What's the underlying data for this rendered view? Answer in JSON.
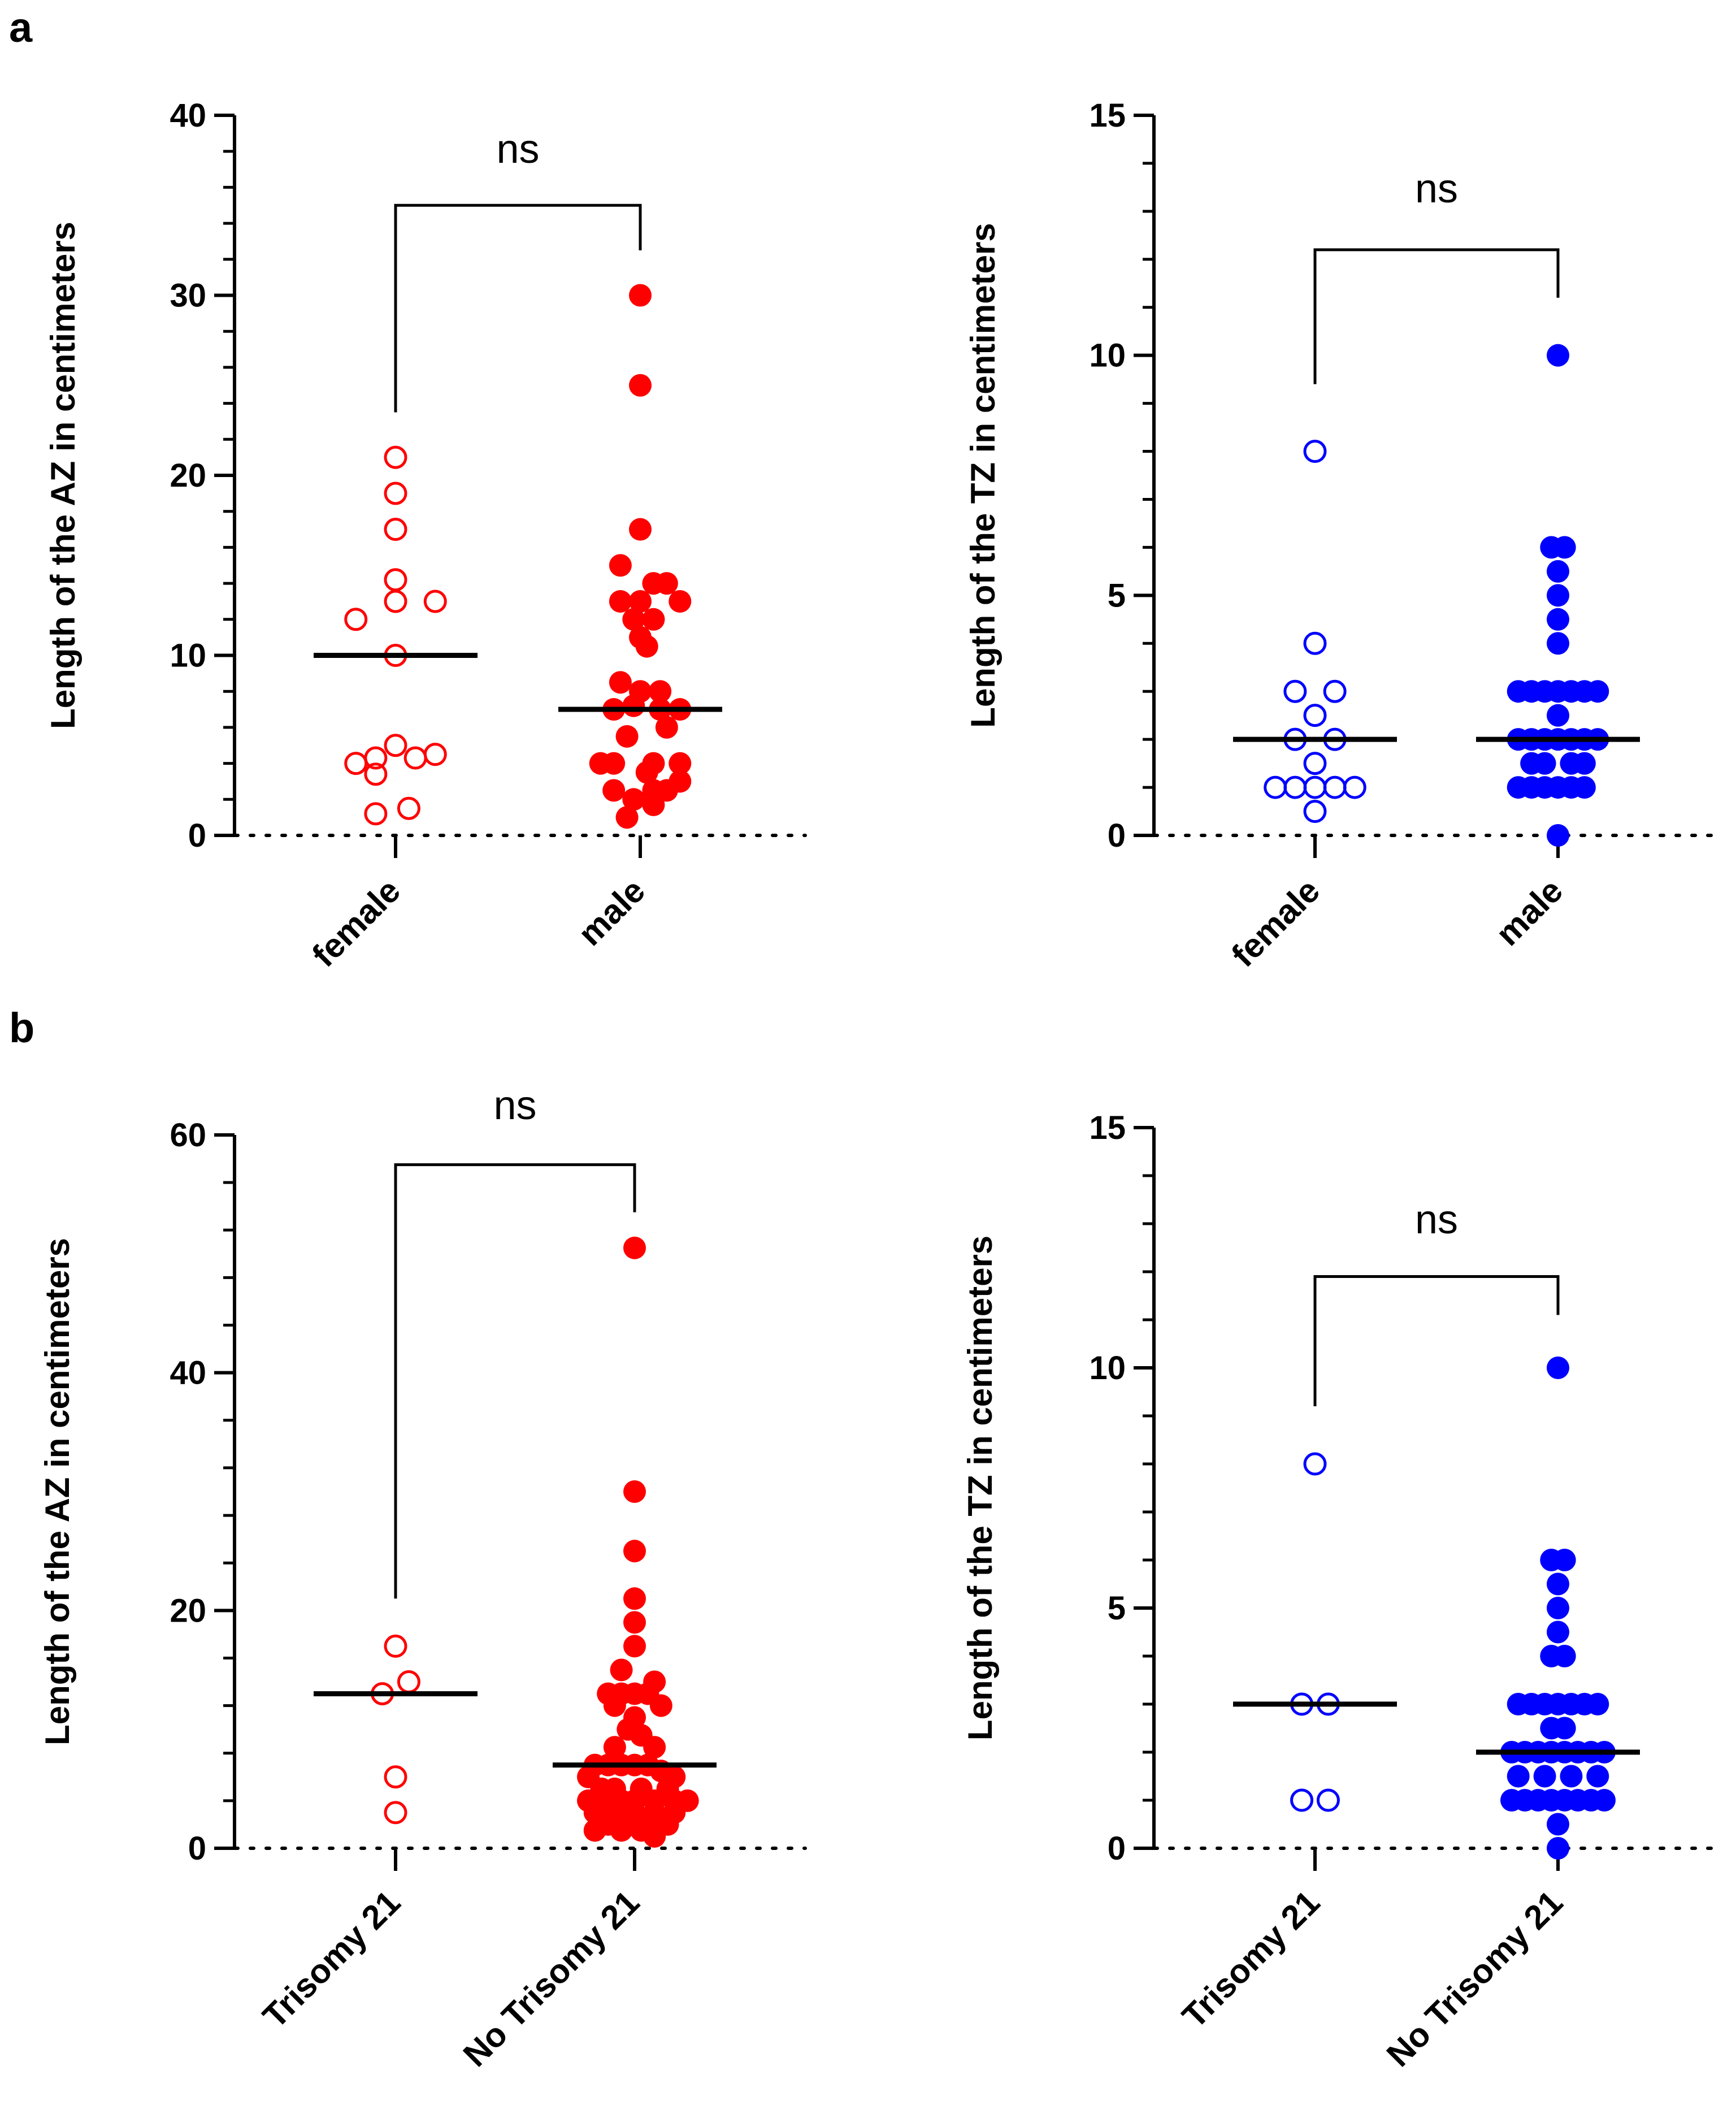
{
  "panel_labels": [
    "a",
    "b"
  ],
  "chart_data": [
    {
      "type": "scatter",
      "panel": "a",
      "ylabel": "Length of the AZ in centimeters",
      "ylim": [
        0,
        40
      ],
      "yticks": [
        0,
        10,
        20,
        30,
        40
      ],
      "minor_ticks_per_major": 4,
      "categories": [
        "female",
        "male"
      ],
      "category_label_rotation": -45,
      "series": [
        {
          "name": "female",
          "marker": "open-circle",
          "color": "#ff0000",
          "median": 10,
          "points": [
            [
              0,
              21
            ],
            [
              0,
              19
            ],
            [
              0,
              17
            ],
            [
              0,
              14.2
            ],
            [
              0,
              13
            ],
            [
              0.3,
              13
            ],
            [
              -0.3,
              12
            ],
            [
              0,
              10
            ],
            [
              0,
              5
            ],
            [
              -0.15,
              4.3
            ],
            [
              0.15,
              4.3
            ],
            [
              -0.3,
              4
            ],
            [
              0.3,
              4.5
            ],
            [
              -0.15,
              3.4
            ],
            [
              -0.15,
              1.2
            ],
            [
              0.1,
              1.5
            ]
          ]
        },
        {
          "name": "male",
          "marker": "filled-circle",
          "color": "#ff0000",
          "median": 7,
          "points": [
            [
              0,
              30
            ],
            [
              0,
              25
            ],
            [
              0,
              17
            ],
            [
              -0.15,
              15
            ],
            [
              0.1,
              14
            ],
            [
              0.2,
              14
            ],
            [
              -0.15,
              13
            ],
            [
              0,
              13
            ],
            [
              0.3,
              13
            ],
            [
              -0.05,
              12
            ],
            [
              0.1,
              12
            ],
            [
              0,
              11
            ],
            [
              0.05,
              10.5
            ],
            [
              -0.15,
              8.5
            ],
            [
              0,
              8
            ],
            [
              0.15,
              8
            ],
            [
              -0.05,
              7.2
            ],
            [
              -0.2,
              7
            ],
            [
              0.15,
              7
            ],
            [
              0.3,
              7
            ],
            [
              0.2,
              6
            ],
            [
              -0.1,
              5.5
            ],
            [
              -0.3,
              4
            ],
            [
              -0.2,
              4
            ],
            [
              0.1,
              4
            ],
            [
              0.3,
              4
            ],
            [
              0.05,
              3.5
            ],
            [
              0.3,
              3
            ],
            [
              -0.2,
              2.5
            ],
            [
              0.1,
              2.5
            ],
            [
              0.2,
              2.5
            ],
            [
              -0.05,
              2
            ],
            [
              0.1,
              1.7
            ],
            [
              -0.1,
              1
            ]
          ]
        }
      ],
      "significance": {
        "label": "ns",
        "bracket_y": 35,
        "left_drop_to": 23.5,
        "right_drop_to": 32.5
      }
    },
    {
      "type": "scatter",
      "panel": "a",
      "ylabel": "Length of the TZ in centimeters",
      "ylim": [
        0,
        15
      ],
      "yticks": [
        0,
        5,
        10,
        15
      ],
      "minor_ticks_per_major": 4,
      "categories": [
        "female",
        "male"
      ],
      "category_label_rotation": -45,
      "series": [
        {
          "name": "female",
          "marker": "open-circle",
          "color": "#0000ff",
          "median": 2,
          "points": [
            [
              0,
              8
            ],
            [
              0,
              4
            ],
            [
              -0.15,
              3
            ],
            [
              0.15,
              3
            ],
            [
              0,
              2.5
            ],
            [
              -0.15,
              2
            ],
            [
              0.15,
              2
            ],
            [
              0,
              1.5
            ],
            [
              -0.3,
              1
            ],
            [
              -0.15,
              1
            ],
            [
              0,
              1
            ],
            [
              0.15,
              1
            ],
            [
              0.3,
              1
            ],
            [
              0,
              0.5
            ]
          ]
        },
        {
          "name": "male",
          "marker": "filled-circle",
          "color": "#0000ff",
          "median": 2,
          "points": [
            [
              0,
              10
            ],
            [
              -0.05,
              6
            ],
            [
              0.05,
              6
            ],
            [
              0,
              5.5
            ],
            [
              0,
              5
            ],
            [
              0,
              4.5
            ],
            [
              0,
              4
            ],
            [
              -0.3,
              3
            ],
            [
              -0.2,
              3
            ],
            [
              -0.1,
              3
            ],
            [
              0,
              3
            ],
            [
              0.1,
              3
            ],
            [
              0.2,
              3
            ],
            [
              0.3,
              3
            ],
            [
              0,
              2.5
            ],
            [
              -0.3,
              2
            ],
            [
              -0.2,
              2
            ],
            [
              -0.1,
              2
            ],
            [
              0,
              2
            ],
            [
              0.1,
              2
            ],
            [
              0.2,
              2
            ],
            [
              0.3,
              2
            ],
            [
              -0.2,
              1.5
            ],
            [
              -0.1,
              1.5
            ],
            [
              0.1,
              1.5
            ],
            [
              0.2,
              1.5
            ],
            [
              -0.3,
              1
            ],
            [
              -0.2,
              1
            ],
            [
              -0.1,
              1
            ],
            [
              0,
              1
            ],
            [
              0.1,
              1
            ],
            [
              0.2,
              1
            ],
            [
              0,
              0
            ]
          ]
        }
      ],
      "significance": {
        "label": "ns",
        "bracket_y": 12.2,
        "left_drop_to": 9.4,
        "right_drop_to": 11.2
      }
    },
    {
      "type": "scatter",
      "panel": "b",
      "ylabel": "Length of the AZ in centimeters",
      "ylim": [
        0,
        60
      ],
      "yticks": [
        0,
        20,
        40,
        60
      ],
      "minor_ticks_per_major": 4,
      "categories": [
        "Trisomy 21",
        "No Trisomy 21"
      ],
      "category_label_rotation": -45,
      "series": [
        {
          "name": "Trisomy 21",
          "marker": "open-circle",
          "color": "#ff0000",
          "median": 13,
          "points": [
            [
              0,
              17
            ],
            [
              0.1,
              14
            ],
            [
              -0.1,
              13
            ],
            [
              0,
              6
            ],
            [
              0,
              3
            ]
          ]
        },
        {
          "name": "No Trisomy 21",
          "marker": "filled-circle",
          "color": "#ff0000",
          "median": 7,
          "points": [
            [
              0,
              50.5
            ],
            [
              0,
              30
            ],
            [
              0,
              25
            ],
            [
              0,
              21
            ],
            [
              0,
              19
            ],
            [
              0,
              17
            ],
            [
              -0.1,
              15
            ],
            [
              0.15,
              14
            ],
            [
              -0.2,
              13
            ],
            [
              -0.1,
              13
            ],
            [
              0,
              13
            ],
            [
              0.1,
              13
            ],
            [
              0.2,
              12
            ],
            [
              -0.15,
              12
            ],
            [
              0,
              11
            ],
            [
              -0.05,
              10
            ],
            [
              0.05,
              9.5
            ],
            [
              -0.15,
              8.5
            ],
            [
              0.15,
              8.5
            ],
            [
              -0.3,
              7
            ],
            [
              -0.2,
              7
            ],
            [
              -0.1,
              7
            ],
            [
              0,
              7
            ],
            [
              0.1,
              7
            ],
            [
              0.2,
              6.5
            ],
            [
              -0.35,
              6
            ],
            [
              0.3,
              6
            ],
            [
              -0.25,
              5
            ],
            [
              -0.15,
              5
            ],
            [
              0.05,
              5
            ],
            [
              0.25,
              5
            ],
            [
              -0.35,
              4
            ],
            [
              -0.25,
              4
            ],
            [
              -0.1,
              4
            ],
            [
              0,
              4
            ],
            [
              0.15,
              4
            ],
            [
              0.3,
              4
            ],
            [
              0.4,
              4
            ],
            [
              -0.3,
              3
            ],
            [
              -0.15,
              3
            ],
            [
              0,
              3
            ],
            [
              0.15,
              3
            ],
            [
              0.3,
              3
            ],
            [
              -0.2,
              2
            ],
            [
              -0.05,
              2
            ],
            [
              0.1,
              2
            ],
            [
              0.25,
              2
            ],
            [
              -0.3,
              1.5
            ],
            [
              -0.1,
              1.5
            ],
            [
              0.05,
              1.5
            ],
            [
              0.15,
              1
            ]
          ]
        }
      ],
      "significance": {
        "label": "ns",
        "bracket_y": 57.5,
        "left_drop_to": 21,
        "right_drop_to": 53.5
      }
    },
    {
      "type": "scatter",
      "panel": "b",
      "ylabel": "Length of the TZ in centimeters",
      "ylim": [
        0,
        15
      ],
      "yticks": [
        0,
        5,
        10,
        15
      ],
      "minor_ticks_per_major": 4,
      "categories": [
        "Trisomy 21",
        "No Trisomy 21"
      ],
      "category_label_rotation": -45,
      "series": [
        {
          "name": "Trisomy 21",
          "marker": "open-circle",
          "color": "#0000ff",
          "median": 3,
          "points": [
            [
              0,
              8
            ],
            [
              -0.1,
              3
            ],
            [
              0.1,
              3
            ],
            [
              -0.1,
              1
            ],
            [
              0.1,
              1
            ]
          ]
        },
        {
          "name": "No Trisomy 21",
          "marker": "filled-circle",
          "color": "#0000ff",
          "median": 2,
          "points": [
            [
              0,
              10
            ],
            [
              -0.05,
              6
            ],
            [
              0.05,
              6
            ],
            [
              0,
              5.5
            ],
            [
              0,
              5
            ],
            [
              0,
              4.5
            ],
            [
              -0.05,
              4
            ],
            [
              0.05,
              4
            ],
            [
              -0.3,
              3
            ],
            [
              -0.2,
              3
            ],
            [
              -0.1,
              3
            ],
            [
              0,
              3
            ],
            [
              0.1,
              3
            ],
            [
              0.2,
              3
            ],
            [
              0.3,
              3
            ],
            [
              -0.05,
              2.5
            ],
            [
              0.05,
              2.5
            ],
            [
              -0.35,
              2
            ],
            [
              -0.25,
              2
            ],
            [
              -0.15,
              2
            ],
            [
              -0.05,
              2
            ],
            [
              0.05,
              2
            ],
            [
              0.15,
              2
            ],
            [
              0.25,
              2
            ],
            [
              0.35,
              2
            ],
            [
              -0.3,
              1.5
            ],
            [
              -0.1,
              1.5
            ],
            [
              0.1,
              1.5
            ],
            [
              0.3,
              1.5
            ],
            [
              -0.35,
              1
            ],
            [
              -0.25,
              1
            ],
            [
              -0.15,
              1
            ],
            [
              -0.05,
              1
            ],
            [
              0.05,
              1
            ],
            [
              0.15,
              1
            ],
            [
              0.25,
              1
            ],
            [
              0.35,
              1
            ],
            [
              0,
              0.5
            ],
            [
              0,
              0
            ]
          ]
        }
      ],
      "significance": {
        "label": "ns",
        "bracket_y": 11.9,
        "left_drop_to": 9.2,
        "right_drop_to": 11.1
      }
    }
  ]
}
